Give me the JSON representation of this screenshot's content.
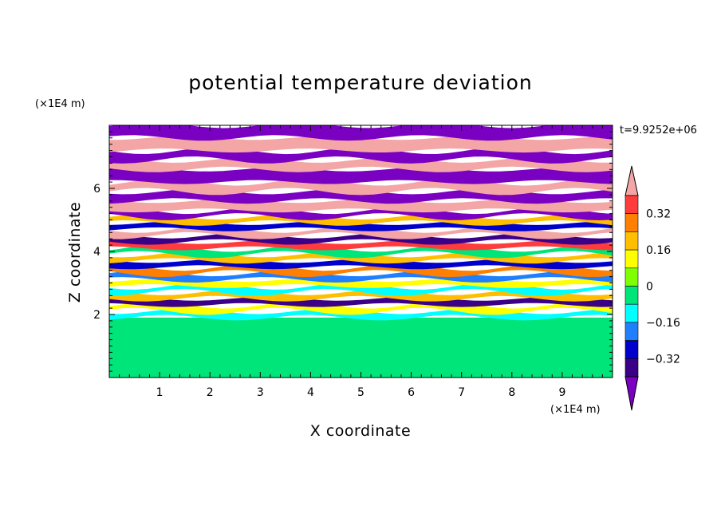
{
  "chart_data": {
    "type": "heatmap",
    "title": "potential temperature deviation",
    "xlabel": "X coordinate",
    "ylabel": "Z coordinate",
    "x_unit": "(×1E4 m)",
    "y_unit": "(×1E4 m)",
    "xlim": [
      0,
      10
    ],
    "ylim": [
      0,
      8
    ],
    "x_ticks": [
      "1",
      "2",
      "3",
      "4",
      "5",
      "6",
      "7",
      "8",
      "9"
    ],
    "y_ticks": [
      "2",
      "4",
      "6"
    ],
    "time_annotation": "t=9.9252e+06",
    "colorbar": {
      "tick_labels": [
        "0.32",
        "0.16",
        "0",
        "-0.16",
        "-0.32"
      ],
      "tick_values": [
        0.32,
        0.16,
        0,
        -0.16,
        -0.32
      ],
      "level_colors": [
        "#f4a6a6",
        "#ff3b3b",
        "#ff7f00",
        "#ffbf00",
        "#ffff00",
        "#7fff00",
        "#00e57a",
        "#00ffff",
        "#1f7fff",
        "#0000cc",
        "#3b0088",
        "#7a00c2"
      ],
      "extend": "both"
    },
    "bands": [
      {
        "z0": 0.0,
        "z1": 1.9,
        "value": 0.0
      },
      {
        "z0": 1.9,
        "z1": 2.1,
        "value": -0.12
      },
      {
        "z0": 2.1,
        "z1": 2.3,
        "value": 0.08
      },
      {
        "z0": 2.3,
        "z1": 2.5,
        "value": -0.36
      },
      {
        "z0": 2.5,
        "z1": 2.7,
        "value": 0.2
      },
      {
        "z0": 2.7,
        "z1": 2.9,
        "value": -0.1
      },
      {
        "z0": 2.9,
        "z1": 3.1,
        "value": 0.12
      },
      {
        "z0": 3.1,
        "z1": 3.3,
        "value": -0.2
      },
      {
        "z0": 3.3,
        "z1": 3.5,
        "value": 0.28
      },
      {
        "z0": 3.5,
        "z1": 3.7,
        "value": -0.3
      },
      {
        "z0": 3.7,
        "z1": 3.9,
        "value": 0.16
      },
      {
        "z0": 3.9,
        "z1": 4.1,
        "value": -0.08
      },
      {
        "z0": 4.1,
        "z1": 4.3,
        "value": 0.36
      },
      {
        "z0": 4.3,
        "z1": 4.5,
        "value": -0.36
      },
      {
        "z0": 4.5,
        "z1": 4.7,
        "value": 0.4
      },
      {
        "z0": 4.7,
        "z1": 4.9,
        "value": -0.28
      },
      {
        "z0": 4.9,
        "z1": 5.1,
        "value": 0.24
      },
      {
        "z0": 5.1,
        "z1": 5.3,
        "value": -0.4
      },
      {
        "z0": 5.3,
        "z1": 5.6,
        "value": 0.44
      },
      {
        "z0": 5.6,
        "z1": 5.9,
        "value": -0.44
      },
      {
        "z0": 5.9,
        "z1": 6.2,
        "value": 0.44
      },
      {
        "z0": 6.2,
        "z1": 6.6,
        "value": -0.44
      },
      {
        "z0": 6.6,
        "z1": 6.9,
        "value": 0.44
      },
      {
        "z0": 6.9,
        "z1": 7.2,
        "value": -0.44
      },
      {
        "z0": 7.2,
        "z1": 7.6,
        "value": 0.44
      },
      {
        "z0": 7.6,
        "z1": 8.0,
        "value": -0.44
      }
    ]
  }
}
